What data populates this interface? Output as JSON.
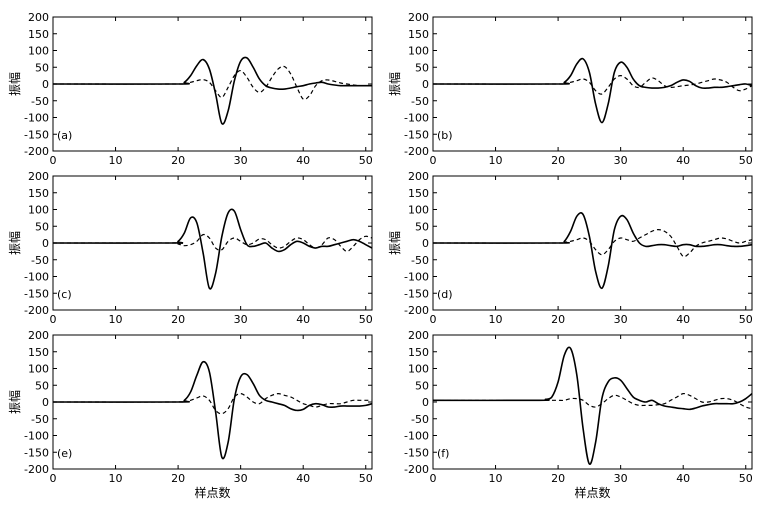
{
  "chart_data": [
    {
      "type": "line",
      "panel_label": "(a)",
      "ylabel": "振幅",
      "xlabel": "",
      "xlim": [
        0,
        51
      ],
      "ylim": [
        -200,
        200
      ],
      "xticks": [
        0,
        10,
        20,
        30,
        40,
        50
      ],
      "yticks": [
        -200,
        -150,
        -100,
        -50,
        0,
        50,
        100,
        150,
        200
      ],
      "series": [
        {
          "style": "solid",
          "x": [
            0,
            20,
            21,
            22,
            23,
            24,
            25,
            26,
            27,
            28,
            29,
            30,
            31,
            32,
            33,
            34,
            35,
            36,
            37,
            38,
            39,
            40,
            41,
            42,
            43,
            44,
            45,
            46,
            47,
            48,
            49,
            50,
            51
          ],
          "y": [
            0,
            0,
            5,
            25,
            55,
            73,
            45,
            -30,
            -118,
            -80,
            10,
            68,
            78,
            50,
            15,
            -5,
            -12,
            -15,
            -15,
            -12,
            -8,
            -5,
            0,
            3,
            5,
            0,
            -3,
            -5,
            -5,
            -5,
            -5,
            -5,
            -5
          ]
        },
        {
          "style": "dashed",
          "x": [
            0,
            20,
            21,
            22,
            23,
            24,
            25,
            26,
            27,
            28,
            29,
            30,
            31,
            32,
            33,
            34,
            35,
            36,
            37,
            38,
            39,
            40,
            41,
            42,
            43,
            44,
            45,
            46,
            47,
            48,
            49,
            50,
            51
          ],
          "y": [
            0,
            0,
            2,
            5,
            10,
            13,
            5,
            -20,
            -40,
            -10,
            25,
            40,
            20,
            -10,
            -25,
            -10,
            20,
            45,
            52,
            30,
            -10,
            -45,
            -35,
            -5,
            10,
            12,
            8,
            3,
            0,
            -3,
            -5,
            -5,
            -5
          ]
        }
      ]
    },
    {
      "type": "line",
      "panel_label": "(b)",
      "ylabel": "振幅",
      "xlabel": "",
      "xlim": [
        0,
        51
      ],
      "ylim": [
        -200,
        200
      ],
      "xticks": [
        0,
        10,
        20,
        30,
        40,
        50
      ],
      "yticks": [
        -200,
        -150,
        -100,
        -50,
        0,
        50,
        100,
        150,
        200
      ],
      "series": [
        {
          "style": "solid",
          "x": [
            0,
            20,
            21,
            22,
            23,
            24,
            25,
            26,
            27,
            28,
            29,
            30,
            31,
            32,
            33,
            34,
            35,
            36,
            37,
            38,
            39,
            40,
            41,
            42,
            43,
            44,
            45,
            46,
            47,
            48,
            49,
            50,
            51
          ],
          "y": [
            0,
            0,
            5,
            25,
            60,
            75,
            35,
            -60,
            -115,
            -60,
            35,
            65,
            50,
            15,
            -5,
            -10,
            -12,
            -12,
            -10,
            -5,
            5,
            12,
            8,
            -5,
            -12,
            -12,
            -10,
            -10,
            -8,
            -5,
            -2,
            0,
            -5
          ]
        },
        {
          "style": "dashed",
          "x": [
            0,
            20,
            21,
            22,
            23,
            24,
            25,
            26,
            27,
            28,
            29,
            30,
            31,
            32,
            33,
            34,
            35,
            36,
            37,
            38,
            39,
            40,
            41,
            42,
            43,
            44,
            45,
            46,
            47,
            48,
            49,
            50,
            51
          ],
          "y": [
            0,
            0,
            2,
            5,
            10,
            15,
            5,
            -20,
            -30,
            -10,
            15,
            25,
            15,
            -5,
            -10,
            5,
            18,
            10,
            -5,
            -10,
            -8,
            -5,
            -3,
            0,
            5,
            10,
            15,
            12,
            5,
            -10,
            -20,
            -15,
            -5
          ]
        }
      ]
    },
    {
      "type": "line",
      "panel_label": "(c)",
      "ylabel": "振幅",
      "xlabel": "",
      "xlim": [
        0,
        51
      ],
      "ylim": [
        -200,
        200
      ],
      "xticks": [
        0,
        10,
        20,
        30,
        40,
        50
      ],
      "yticks": [
        -200,
        -150,
        -100,
        -50,
        0,
        50,
        100,
        150,
        200
      ],
      "series": [
        {
          "style": "solid",
          "x": [
            0,
            19,
            20,
            21,
            22,
            23,
            24,
            25,
            26,
            27,
            28,
            29,
            30,
            31,
            32,
            33,
            34,
            35,
            36,
            37,
            38,
            39,
            40,
            41,
            42,
            43,
            44,
            45,
            46,
            47,
            48,
            49,
            50,
            51
          ],
          "y": [
            0,
            0,
            5,
            30,
            75,
            60,
            -30,
            -135,
            -90,
            20,
            90,
            95,
            40,
            -5,
            -10,
            -5,
            0,
            -15,
            -25,
            -20,
            -5,
            5,
            0,
            -10,
            -15,
            -10,
            -10,
            -5,
            0,
            5,
            10,
            5,
            -5,
            -15
          ]
        },
        {
          "style": "dashed",
          "x": [
            0,
            19,
            20,
            21,
            22,
            23,
            24,
            25,
            26,
            27,
            28,
            29,
            30,
            31,
            32,
            33,
            34,
            35,
            36,
            37,
            38,
            39,
            40,
            41,
            42,
            43,
            44,
            45,
            46,
            47,
            48,
            49,
            50,
            51
          ],
          "y": [
            0,
            0,
            -3,
            -8,
            -5,
            5,
            25,
            15,
            -15,
            -20,
            5,
            15,
            5,
            -5,
            0,
            12,
            10,
            -5,
            -15,
            -10,
            5,
            15,
            10,
            -5,
            -15,
            -5,
            15,
            10,
            -10,
            -25,
            -10,
            10,
            20,
            15
          ]
        }
      ]
    },
    {
      "type": "line",
      "panel_label": "(d)",
      "ylabel": "振幅",
      "xlabel": "",
      "xlim": [
        0,
        51
      ],
      "ylim": [
        -200,
        200
      ],
      "xticks": [
        0,
        10,
        20,
        30,
        40,
        50
      ],
      "yticks": [
        -200,
        -150,
        -100,
        -50,
        0,
        50,
        100,
        150,
        200
      ],
      "series": [
        {
          "style": "solid",
          "x": [
            0,
            20,
            21,
            22,
            23,
            24,
            25,
            26,
            27,
            28,
            29,
            30,
            31,
            32,
            33,
            34,
            35,
            36,
            37,
            38,
            39,
            40,
            41,
            42,
            43,
            44,
            45,
            46,
            47,
            48,
            49,
            50,
            51
          ],
          "y": [
            0,
            0,
            5,
            35,
            80,
            85,
            20,
            -85,
            -135,
            -70,
            40,
            80,
            70,
            30,
            0,
            -10,
            -8,
            -5,
            -5,
            -8,
            -10,
            -5,
            -5,
            -10,
            -10,
            -8,
            -5,
            -5,
            -8,
            -10,
            -10,
            -8,
            -5
          ]
        },
        {
          "style": "dashed",
          "x": [
            0,
            20,
            21,
            22,
            23,
            24,
            25,
            26,
            27,
            28,
            29,
            30,
            31,
            32,
            33,
            34,
            35,
            36,
            37,
            38,
            39,
            40,
            41,
            42,
            43,
            44,
            45,
            46,
            47,
            48,
            49,
            50,
            51
          ],
          "y": [
            0,
            0,
            2,
            5,
            10,
            15,
            5,
            -20,
            -35,
            -20,
            5,
            15,
            10,
            5,
            15,
            25,
            35,
            40,
            35,
            20,
            -10,
            -40,
            -30,
            -10,
            0,
            5,
            10,
            15,
            12,
            5,
            0,
            5,
            10
          ]
        }
      ]
    },
    {
      "type": "line",
      "panel_label": "(e)",
      "ylabel": "振幅",
      "xlabel": "样点数",
      "xlim": [
        0,
        51
      ],
      "ylim": [
        -200,
        200
      ],
      "xticks": [
        0,
        10,
        20,
        30,
        40,
        50
      ],
      "yticks": [
        -200,
        -150,
        -100,
        -50,
        0,
        50,
        100,
        150,
        200
      ],
      "series": [
        {
          "style": "solid",
          "x": [
            0,
            20,
            21,
            22,
            23,
            24,
            25,
            26,
            27,
            28,
            29,
            30,
            31,
            32,
            33,
            34,
            35,
            36,
            37,
            38,
            39,
            40,
            41,
            42,
            43,
            44,
            45,
            46,
            47,
            48,
            49,
            50,
            51
          ],
          "y": [
            0,
            0,
            5,
            30,
            80,
            120,
            90,
            -30,
            -165,
            -120,
            10,
            75,
            82,
            55,
            20,
            5,
            0,
            -5,
            -10,
            -20,
            -25,
            -22,
            -10,
            -5,
            -8,
            -15,
            -15,
            -12,
            -12,
            -12,
            -12,
            -10,
            -5
          ]
        },
        {
          "style": "dashed",
          "x": [
            0,
            20,
            21,
            22,
            23,
            24,
            25,
            26,
            27,
            28,
            29,
            30,
            31,
            32,
            33,
            34,
            35,
            36,
            37,
            38,
            39,
            40,
            41,
            42,
            43,
            44,
            45,
            46,
            47,
            48,
            49,
            50,
            51
          ],
          "y": [
            0,
            0,
            2,
            5,
            12,
            18,
            5,
            -25,
            -35,
            -20,
            15,
            25,
            15,
            0,
            -5,
            10,
            20,
            25,
            20,
            15,
            5,
            -5,
            -10,
            -15,
            -10,
            -5,
            -5,
            -5,
            0,
            5,
            5,
            5,
            5
          ]
        }
      ]
    },
    {
      "type": "line",
      "panel_label": "(f)",
      "ylabel": "",
      "xlabel": "样点数",
      "xlim": [
        0,
        51
      ],
      "ylim": [
        -200,
        200
      ],
      "xticks": [
        0,
        10,
        20,
        30,
        40,
        50
      ],
      "yticks": [
        -200,
        -150,
        -100,
        -50,
        0,
        50,
        100,
        150,
        200
      ],
      "series": [
        {
          "style": "solid",
          "x": [
            0,
            17,
            18,
            19,
            20,
            21,
            22,
            23,
            24,
            25,
            26,
            27,
            28,
            29,
            30,
            31,
            32,
            33,
            34,
            35,
            36,
            37,
            38,
            39,
            40,
            41,
            42,
            43,
            44,
            45,
            46,
            47,
            48,
            49,
            50,
            51
          ],
          "y": [
            5,
            5,
            8,
            15,
            60,
            140,
            160,
            80,
            -80,
            -185,
            -120,
            10,
            60,
            72,
            65,
            40,
            15,
            5,
            0,
            5,
            -5,
            -12,
            -15,
            -18,
            -20,
            -22,
            -18,
            -12,
            -8,
            -5,
            -5,
            -5,
            -5,
            0,
            10,
            25
          ]
        },
        {
          "style": "dashed",
          "x": [
            0,
            17,
            18,
            19,
            20,
            21,
            22,
            23,
            24,
            25,
            26,
            27,
            28,
            29,
            30,
            31,
            32,
            33,
            34,
            35,
            36,
            37,
            38,
            39,
            40,
            41,
            42,
            43,
            44,
            45,
            46,
            47,
            48,
            49,
            50,
            51
          ],
          "y": [
            5,
            5,
            5,
            5,
            5,
            5,
            10,
            10,
            5,
            -10,
            -15,
            -5,
            10,
            20,
            15,
            5,
            -5,
            -10,
            -10,
            -10,
            -8,
            -5,
            5,
            15,
            25,
            20,
            10,
            0,
            0,
            5,
            10,
            10,
            5,
            -5,
            -15,
            -20
          ]
        }
      ]
    }
  ]
}
